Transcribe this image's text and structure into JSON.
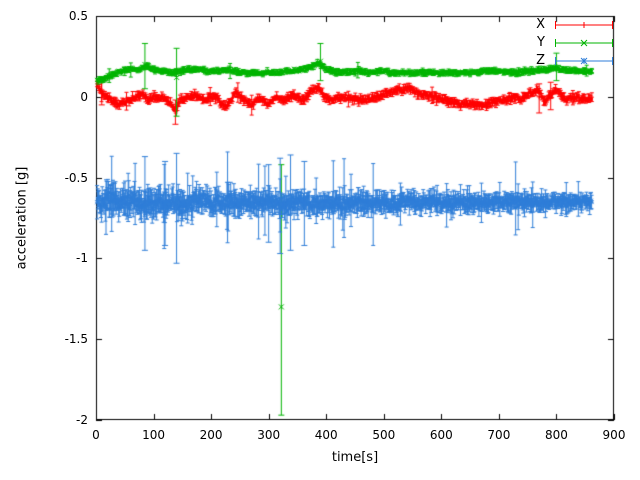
{
  "figure": {
    "background": "#ffffff",
    "border_color": "#000000"
  },
  "chart_data": {
    "type": "scatter",
    "style": "points-with-vertical-errorbars",
    "title": "",
    "xlabel": "time[s]",
    "ylabel": "acceleration [g]",
    "xlim": [
      0,
      900
    ],
    "ylim": [
      -2,
      0.5
    ],
    "grid": false,
    "legend_position": "top-right",
    "xticks": {
      "values": [
        0,
        100,
        200,
        300,
        400,
        500,
        600,
        700,
        800,
        900
      ],
      "labels": [
        "0",
        "100",
        "200",
        "300",
        "400",
        "500",
        "600",
        "700",
        "800",
        "900"
      ]
    },
    "yticks": {
      "values": [
        0.5,
        0,
        -0.5,
        -1,
        -1.5,
        -2
      ],
      "labels": [
        "0.5",
        "0",
        "-0.5",
        "-1",
        "-1.5",
        "-2"
      ]
    },
    "series": [
      {
        "name": "X",
        "color": "#ff0000",
        "marker": "plus",
        "approx_level": 0.0,
        "seed": 3,
        "t_start": 2,
        "t_end": 862,
        "step": 1.5,
        "noise": 0.012,
        "err": 0.02,
        "big_prob": 0.02,
        "big_scale": 2.0,
        "amp_profile": [
          [
            0,
            1.0
          ],
          [
            862,
            1.0
          ]
        ],
        "anchors": [
          [
            0,
            0.09
          ],
          [
            6,
            0.05
          ],
          [
            14,
            0.01
          ],
          [
            25,
            -0.02
          ],
          [
            38,
            -0.045
          ],
          [
            52,
            -0.03
          ],
          [
            66,
            -0.005
          ],
          [
            80,
            0.015
          ],
          [
            92,
            -0.02
          ],
          [
            105,
            0.0
          ],
          [
            118,
            -0.01
          ],
          [
            130,
            -0.04
          ],
          [
            137,
            -0.085
          ],
          [
            144,
            -0.03
          ],
          [
            158,
            0.0
          ],
          [
            172,
            0.01
          ],
          [
            188,
            -0.02
          ],
          [
            205,
            0.005
          ],
          [
            222,
            -0.055
          ],
          [
            232,
            -0.035
          ],
          [
            243,
            0.03
          ],
          [
            256,
            -0.015
          ],
          [
            270,
            -0.05
          ],
          [
            284,
            -0.01
          ],
          [
            298,
            -0.045
          ],
          [
            312,
            0.0
          ],
          [
            328,
            -0.02
          ],
          [
            344,
            0.01
          ],
          [
            360,
            -0.025
          ],
          [
            374,
            0.035
          ],
          [
            386,
            0.06
          ],
          [
            396,
            0.005
          ],
          [
            410,
            -0.02
          ],
          [
            428,
            0.0
          ],
          [
            448,
            -0.015
          ],
          [
            468,
            -0.02
          ],
          [
            488,
            0.0
          ],
          [
            508,
            0.02
          ],
          [
            528,
            0.045
          ],
          [
            544,
            0.055
          ],
          [
            560,
            0.02
          ],
          [
            580,
            0.0
          ],
          [
            598,
            -0.01
          ],
          [
            615,
            -0.03
          ],
          [
            632,
            -0.05
          ],
          [
            648,
            -0.04
          ],
          [
            663,
            -0.055
          ],
          [
            678,
            -0.05
          ],
          [
            692,
            -0.03
          ],
          [
            706,
            -0.02
          ],
          [
            722,
            -0.005
          ],
          [
            740,
            -0.01
          ],
          [
            756,
            0.02
          ],
          [
            768,
            0.045
          ],
          [
            778,
            -0.03
          ],
          [
            788,
            0.0
          ],
          [
            798,
            0.04
          ],
          [
            808,
            0.015
          ],
          [
            818,
            -0.02
          ],
          [
            830,
            0.0
          ],
          [
            845,
            -0.012
          ],
          [
            862,
            -0.008
          ]
        ],
        "outliers": [
          [
            10,
            0.02,
            -0.05,
            0.1
          ],
          [
            138,
            -0.09,
            -0.17,
            -0.02
          ],
          [
            770,
            0.0,
            -0.1,
            0.08
          ],
          [
            790,
            0.0,
            -0.08,
            0.09
          ]
        ]
      },
      {
        "name": "Y",
        "color": "#00b400",
        "marker": "cross",
        "approx_level": 0.155,
        "seed": 5,
        "t_start": 2,
        "t_end": 862,
        "step": 1.5,
        "noise": 0.008,
        "err": 0.014,
        "big_prob": 0.02,
        "big_scale": 1.8,
        "amp_profile": [
          [
            0,
            1.0
          ],
          [
            862,
            1.0
          ]
        ],
        "anchors": [
          [
            0,
            0.1
          ],
          [
            10,
            0.105
          ],
          [
            22,
            0.125
          ],
          [
            36,
            0.15
          ],
          [
            50,
            0.165
          ],
          [
            64,
            0.17
          ],
          [
            78,
            0.17
          ],
          [
            88,
            0.19
          ],
          [
            98,
            0.17
          ],
          [
            115,
            0.16
          ],
          [
            135,
            0.15
          ],
          [
            155,
            0.165
          ],
          [
            175,
            0.17
          ],
          [
            195,
            0.16
          ],
          [
            215,
            0.16
          ],
          [
            235,
            0.165
          ],
          [
            255,
            0.15
          ],
          [
            275,
            0.145
          ],
          [
            295,
            0.15
          ],
          [
            315,
            0.15
          ],
          [
            335,
            0.16
          ],
          [
            355,
            0.165
          ],
          [
            375,
            0.185
          ],
          [
            388,
            0.21
          ],
          [
            398,
            0.17
          ],
          [
            415,
            0.155
          ],
          [
            435,
            0.15
          ],
          [
            455,
            0.16
          ],
          [
            475,
            0.15
          ],
          [
            495,
            0.158
          ],
          [
            515,
            0.15
          ],
          [
            535,
            0.145
          ],
          [
            555,
            0.15
          ],
          [
            575,
            0.152
          ],
          [
            595,
            0.145
          ],
          [
            615,
            0.15
          ],
          [
            635,
            0.15
          ],
          [
            655,
            0.152
          ],
          [
            675,
            0.158
          ],
          [
            695,
            0.16
          ],
          [
            715,
            0.152
          ],
          [
            735,
            0.15
          ],
          [
            755,
            0.158
          ],
          [
            775,
            0.165
          ],
          [
            795,
            0.175
          ],
          [
            810,
            0.17
          ],
          [
            825,
            0.162
          ],
          [
            842,
            0.158
          ],
          [
            862,
            0.158
          ]
        ],
        "outliers": [
          [
            85,
            0.2,
            0.05,
            0.33
          ],
          [
            140,
            0.12,
            -0.12,
            0.3
          ],
          [
            390,
            0.22,
            0.1,
            0.33
          ],
          [
            800,
            0.18,
            0.1,
            0.27
          ],
          [
            322,
            -1.3,
            -1.97,
            -0.42
          ]
        ]
      },
      {
        "name": "Z",
        "color": "#2f7ed8",
        "marker": "star",
        "approx_level": -0.655,
        "seed": 7,
        "t_start": 2,
        "t_end": 862,
        "step": 1.1,
        "noise": 0.03,
        "err": 0.05,
        "big_prob": 0.07,
        "big_scale": 2.2,
        "amp_profile": [
          [
            0,
            1.45
          ],
          [
            120,
            1.35
          ],
          [
            250,
            1.2
          ],
          [
            400,
            1.05
          ],
          [
            550,
            0.95
          ],
          [
            700,
            0.85
          ],
          [
            862,
            0.75
          ]
        ],
        "anchors": [
          [
            0,
            -0.62
          ],
          [
            8,
            -0.655
          ],
          [
            25,
            -0.65
          ],
          [
            45,
            -0.66
          ],
          [
            65,
            -0.65
          ],
          [
            85,
            -0.66
          ],
          [
            105,
            -0.652
          ],
          [
            125,
            -0.66
          ],
          [
            145,
            -0.668
          ],
          [
            165,
            -0.658
          ],
          [
            185,
            -0.65
          ],
          [
            205,
            -0.66
          ],
          [
            225,
            -0.66
          ],
          [
            245,
            -0.652
          ],
          [
            265,
            -0.66
          ],
          [
            285,
            -0.658
          ],
          [
            305,
            -0.65
          ],
          [
            325,
            -0.66
          ],
          [
            345,
            -0.66
          ],
          [
            365,
            -0.652
          ],
          [
            385,
            -0.66
          ],
          [
            405,
            -0.66
          ],
          [
            425,
            -0.658
          ],
          [
            445,
            -0.65
          ],
          [
            465,
            -0.658
          ],
          [
            485,
            -0.65
          ],
          [
            505,
            -0.66
          ],
          [
            525,
            -0.658
          ],
          [
            545,
            -0.65
          ],
          [
            565,
            -0.656
          ],
          [
            585,
            -0.65
          ],
          [
            605,
            -0.658
          ],
          [
            625,
            -0.652
          ],
          [
            645,
            -0.65
          ],
          [
            665,
            -0.652
          ],
          [
            685,
            -0.65
          ],
          [
            705,
            -0.65
          ],
          [
            725,
            -0.65
          ],
          [
            745,
            -0.65
          ],
          [
            765,
            -0.657
          ],
          [
            785,
            -0.652
          ],
          [
            805,
            -0.65
          ],
          [
            825,
            -0.65
          ],
          [
            845,
            -0.65
          ],
          [
            862,
            -0.65
          ]
        ],
        "outliers": [
          [
            85,
            -0.66,
            -0.95,
            -0.37
          ],
          [
            120,
            -0.65,
            -0.92,
            -0.4
          ],
          [
            140,
            -0.68,
            -1.03,
            -0.35
          ],
          [
            300,
            -0.65,
            -0.9,
            -0.42
          ],
          [
            320,
            -0.66,
            -0.97,
            -0.38
          ],
          [
            338,
            -0.65,
            -0.95,
            -0.36
          ],
          [
            362,
            -0.66,
            -0.92,
            -0.4
          ]
        ]
      }
    ]
  }
}
